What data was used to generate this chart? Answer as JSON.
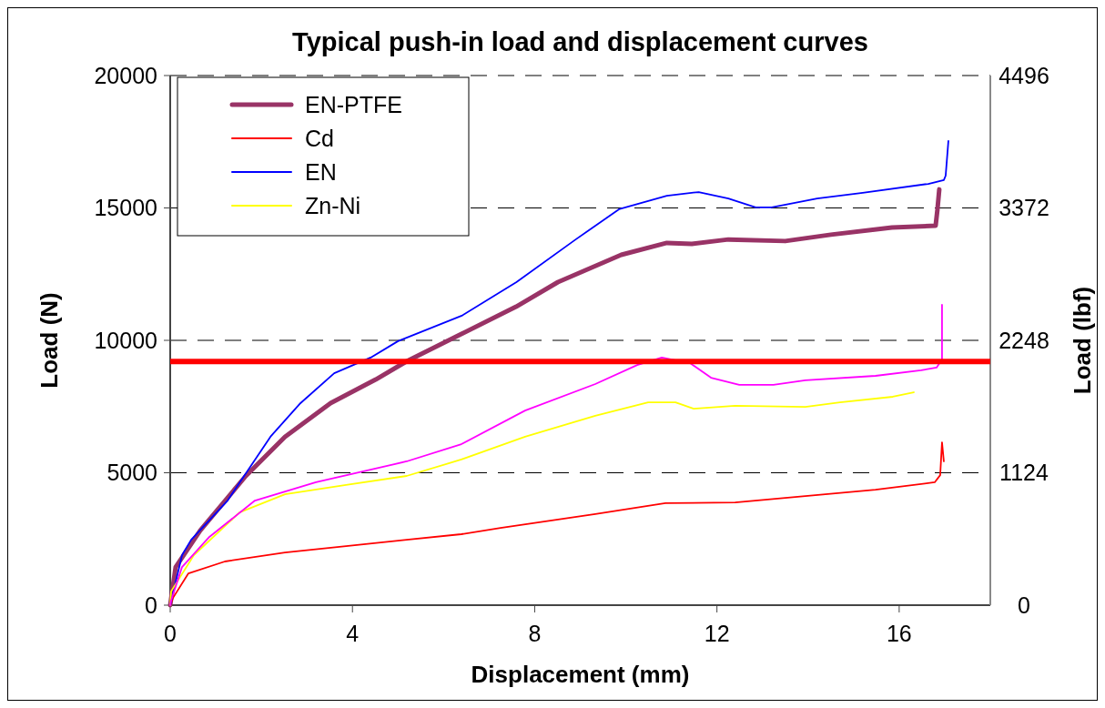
{
  "chart_data": {
    "type": "line",
    "title": "Typical push-in load and displacement curves",
    "xlabel": "Displacement (mm)",
    "ylabel": "Load (N)",
    "y2label": "Load (lbf)",
    "xlim": [
      0,
      18
    ],
    "xticks": [
      0,
      4,
      8,
      12,
      16
    ],
    "ylim": [
      0,
      20000
    ],
    "yticks": [
      0,
      5000,
      10000,
      15000,
      20000
    ],
    "y2lim": [
      0,
      4496
    ],
    "y2ticks": [
      0,
      1124,
      2248,
      3372,
      4496
    ],
    "grid": "y",
    "legend": "top left",
    "marker": "none",
    "line_style": "solid",
    "ref_lines": [
      {
        "axis": "y",
        "value": 9200,
        "color": "#ff0000"
      }
    ],
    "series": [
      {
        "name": "EN-PTFE",
        "color": "#993366",
        "x": [
          0,
          0.12,
          0.66,
          1.66,
          2.52,
          3.52,
          4.51,
          5.19,
          6.39,
          7.59,
          8.51,
          9.9,
          10.9,
          11.45,
          12.25,
          13.5,
          14.5,
          15.84,
          16.8,
          16.84,
          16.88
        ],
        "values": [
          0,
          1440,
          2820,
          4880,
          6360,
          7630,
          8520,
          9210,
          10240,
          11270,
          12200,
          13230,
          13680,
          13640,
          13810,
          13750,
          13990,
          14260,
          14330,
          14950,
          15700
        ]
      },
      {
        "name": "Cd",
        "color": "#ff0000",
        "x": [
          0,
          0.06,
          0.4,
          1.2,
          2.52,
          3.86,
          5.19,
          6.39,
          7.25,
          9.33,
          10.87,
          12.4,
          13.94,
          15.48,
          16.78,
          16.9,
          16.94,
          16.98
        ],
        "values": [
          0,
          270,
          1200,
          1650,
          1990,
          2230,
          2470,
          2680,
          2920,
          3440,
          3850,
          3880,
          4120,
          4360,
          4640,
          4910,
          6150,
          5430
        ]
      },
      {
        "name": "EN",
        "color": "#0000ff",
        "x": [
          0,
          0.26,
          0.46,
          1.26,
          2.2,
          2.86,
          3.6,
          4.4,
          5.0,
          6.4,
          7.6,
          8.9,
          9.85,
          10.9,
          11.6,
          12.25,
          12.85,
          13.2,
          14.2,
          15.2,
          16.64,
          16.98,
          17.02,
          17.08
        ],
        "values": [
          0,
          1890,
          2470,
          3950,
          6360,
          7630,
          8760,
          9350,
          9970,
          10930,
          12200,
          13810,
          14950,
          15460,
          15600,
          15360,
          15020,
          15020,
          15360,
          15570,
          15910,
          16050,
          16220,
          17530
        ]
      },
      {
        "name": "Zn-Ni",
        "color": "#ffff00",
        "x": [
          0,
          0.02,
          0.52,
          1.52,
          2.52,
          3.86,
          5.19,
          6.39,
          7.79,
          9.33,
          10.49,
          11.09,
          11.49,
          12.4,
          13.94,
          14.7,
          15.86,
          16.32
        ],
        "values": [
          0,
          520,
          1890,
          3500,
          4190,
          4540,
          4880,
          5500,
          6360,
          7150,
          7660,
          7660,
          7420,
          7530,
          7490,
          7660,
          7870,
          8040
        ]
      },
      {
        "color": "#ff00ff",
        "x": [
          0,
          0.02,
          0.26,
          0.86,
          1.86,
          3.2,
          5.19,
          6.39,
          7.79,
          9.33,
          10.25,
          10.79,
          11.41,
          11.87,
          12.49,
          13.24,
          13.94,
          15.48,
          16.48,
          16.82,
          16.94,
          16.94
        ],
        "values": [
          0,
          170,
          1440,
          2580,
          3950,
          4640,
          5430,
          6080,
          7350,
          8350,
          9070,
          9350,
          9140,
          8590,
          8320,
          8320,
          8490,
          8660,
          8870,
          8970,
          9280,
          11340
        ]
      }
    ]
  }
}
